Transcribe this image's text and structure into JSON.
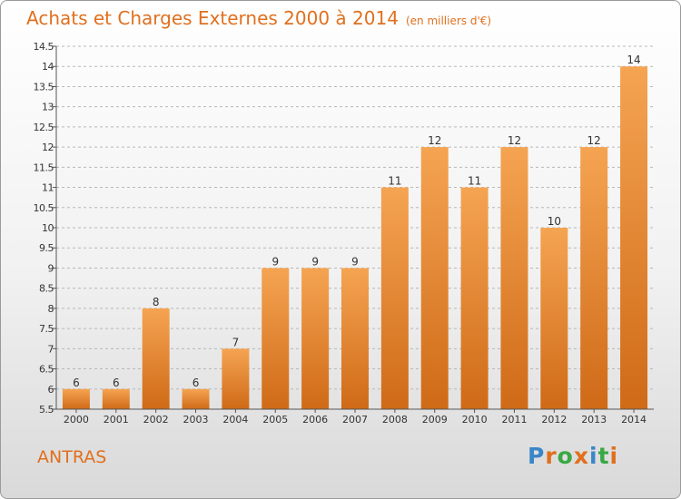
{
  "header": {
    "title": "Achats et Charges Externes 2000 à 2014",
    "subtitle": "(en milliers d'€)"
  },
  "footer": {
    "place": "ANTRAS",
    "logo_text": "Proxiti",
    "logo_colors": [
      "#3a86c8",
      "#e0701e",
      "#39a845",
      "#e0701e",
      "#3a86c8",
      "#39a845",
      "#e0701e"
    ]
  },
  "colors": {
    "accent": "#e0701e",
    "bar_top": "#f5a452",
    "bar_bottom": "#cf6a17",
    "grid": "#b8b8b8",
    "axis_text": "#333333"
  },
  "chart_data": {
    "type": "bar",
    "title": "Achats et Charges Externes 2000 à 2014",
    "subtitle": "(en milliers d'€)",
    "categories": [
      "2000",
      "2001",
      "2002",
      "2003",
      "2004",
      "2005",
      "2006",
      "2007",
      "2008",
      "2009",
      "2010",
      "2011",
      "2012",
      "2013",
      "2014"
    ],
    "values": [
      6,
      6,
      8,
      6,
      7,
      9,
      9,
      9,
      11,
      12,
      11,
      12,
      10,
      12,
      14
    ],
    "data_labels": [
      "6",
      "6",
      "8",
      "6",
      "7",
      "9",
      "9",
      "9",
      "11",
      "12",
      "11",
      "12",
      "10",
      "12",
      "14"
    ],
    "ylim": [
      5.5,
      14.5
    ],
    "yticks": [
      "5.5",
      "6",
      "6.5",
      "7",
      "7.5",
      "8",
      "8.5",
      "9",
      "9.5",
      "10",
      "10.5",
      "11",
      "11.5",
      "12",
      "12.5",
      "13",
      "13.5",
      "14",
      "14.5"
    ],
    "grid": "horizontal dashed",
    "legend": "none"
  }
}
